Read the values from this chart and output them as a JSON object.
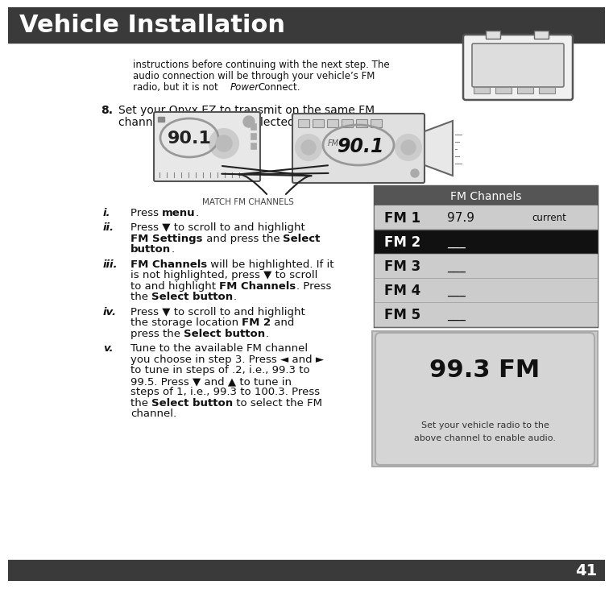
{
  "title": "Vehicle Installation",
  "title_bg": "#3a3a3a",
  "title_color": "#ffffff",
  "page_bg": "#ffffff",
  "footer_bg": "#3a3a3a",
  "footer_text": "41",
  "footer_color": "#ffffff",
  "intro_lines": [
    "instructions before continuing with the next step. The",
    "audio connection will be through your vehicle’s FM",
    "radio, but it is not PowerConnect."
  ],
  "power_italic": "Power",
  "step8_line1": "Set your Onyx EZ to transmit on the same FM",
  "step8_line2": "channel that you have selected in step 7:",
  "match_label": "MATCH FM CHANNELS",
  "radio1_freq": "90.1",
  "radio2_freq": "90.1",
  "fm_channels_title": "FM Channels",
  "fm_title_bg": "#555555",
  "fm_title_color": "#ffffff",
  "fm_entries": [
    {
      "label": "FM 1",
      "value": "97.9",
      "extra": "current",
      "highlight": false,
      "bg": "#cccccc"
    },
    {
      "label": "FM 2",
      "value": "___",
      "extra": "",
      "highlight": true,
      "bg": "#111111"
    },
    {
      "label": "FM 3",
      "value": "___",
      "extra": "",
      "highlight": false,
      "bg": "#cccccc"
    },
    {
      "label": "FM 4",
      "value": "___",
      "extra": "",
      "highlight": false,
      "bg": "#cccccc"
    },
    {
      "label": "FM 5",
      "value": "___",
      "extra": "",
      "highlight": false,
      "bg": "#cccccc"
    }
  ],
  "display_freq": "99.3 FM",
  "display_line1": "Set your vehicle radio to the",
  "display_line2": "above channel to enable audio.",
  "display_bg": "#d5d5d5",
  "substeps": [
    {
      "label": "i.",
      "segments": [
        {
          "text": "Press ",
          "bold": false
        },
        {
          "text": "menu",
          "bold": true
        },
        {
          "text": ".",
          "bold": false
        }
      ]
    },
    {
      "label": "ii.",
      "segments": [
        {
          "text": "Press ▼ to scroll to and highlight\n",
          "bold": false
        },
        {
          "text": "FM Settings",
          "bold": true
        },
        {
          "text": " and press the ",
          "bold": false
        },
        {
          "text": "Select\nbutton",
          "bold": true
        },
        {
          "text": ".",
          "bold": false
        }
      ]
    },
    {
      "label": "iii.",
      "segments": [
        {
          "text": "FM Channels",
          "bold": true
        },
        {
          "text": " will be highlighted. If it\nis not highlighted, press ▼ to scroll\nto and highlight ",
          "bold": false
        },
        {
          "text": "FM Channels",
          "bold": true
        },
        {
          "text": ". Press\nthe ",
          "bold": false
        },
        {
          "text": "Select button",
          "bold": true
        },
        {
          "text": ".",
          "bold": false
        }
      ]
    },
    {
      "label": "iv.",
      "segments": [
        {
          "text": "Press ▼ to scroll to and highlight\nthe storage location ",
          "bold": false
        },
        {
          "text": "FM 2",
          "bold": true
        },
        {
          "text": " and\npress the ",
          "bold": false
        },
        {
          "text": "Select button",
          "bold": true
        },
        {
          "text": ".",
          "bold": false
        }
      ]
    },
    {
      "label": "v.",
      "segments": [
        {
          "text": "Tune to the available FM channel\nyou choose in step 3. Press ◄ and ►\nto tune in steps of .2, i.e., 99.3 to\n99.5. Press ▼ and ▲ to tune in\nsteps of 1, i.e., 99.3 to 100.3. Press\nthe ",
          "bold": false
        },
        {
          "text": "Select button",
          "bold": true
        },
        {
          "text": " to select the FM\nchannel.",
          "bold": false
        }
      ]
    }
  ]
}
